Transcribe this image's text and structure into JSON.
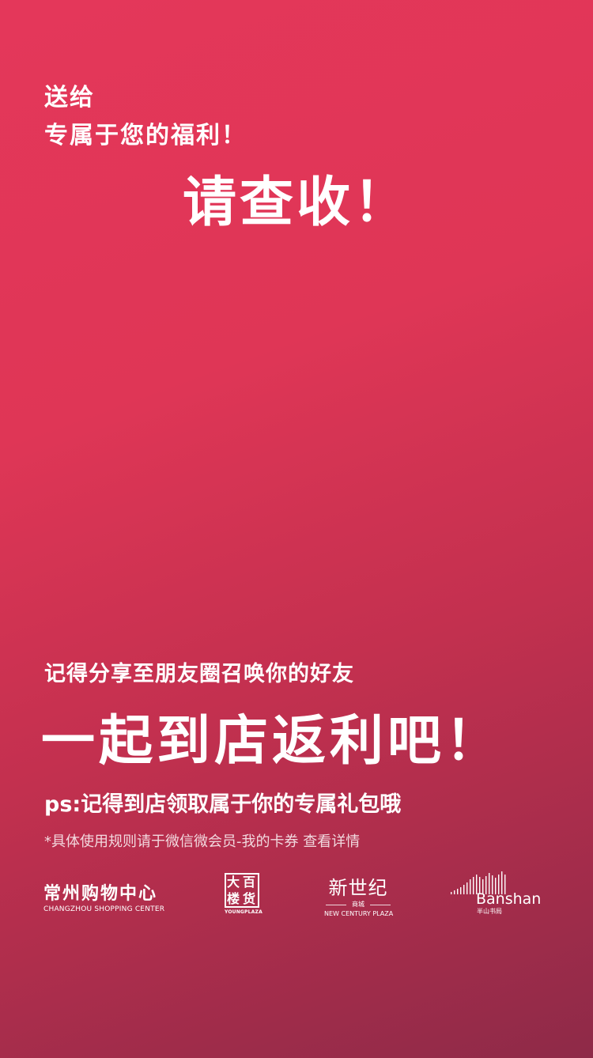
{
  "intro": {
    "line1": "送给",
    "line2": "专属于您的福利！"
  },
  "headline": "请查收！",
  "share_line": "记得分享至朋友圈召唤你的好友",
  "cta": "一起到店返利吧！",
  "ps_line": "ps:记得到店领取属于你的专属礼包哦",
  "rules_line": "*具体使用规则请于微信微会员-我的卡券 查看详情",
  "logos": {
    "changzhou": {
      "cn": "常州购物中心",
      "en": "CHANGZHOU SHOPPING CENTER"
    },
    "young": {
      "c1": "大",
      "c2": "百",
      "c3": "楼",
      "c4": "货",
      "en": "YOUNGPLAZA"
    },
    "century": {
      "cn": "新世纪",
      "sub": "商城",
      "en": "NEW CENTURY PLAZA"
    },
    "banshan": {
      "en": "Banshan",
      "cn": "半山书局"
    }
  },
  "colors": {
    "gradient_start": "#e4375a",
    "gradient_end": "#8e2a48",
    "text": "#ffffff"
  }
}
